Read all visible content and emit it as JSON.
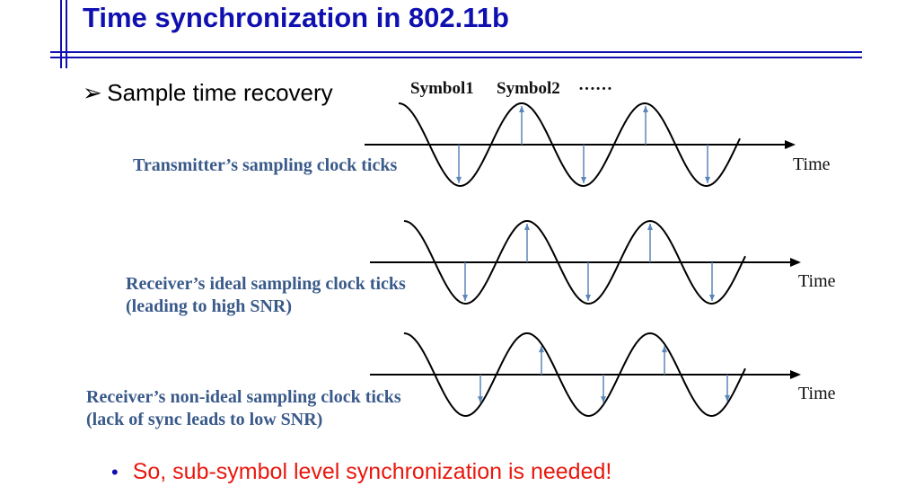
{
  "title": "Time synchronization in 802.11b",
  "bullet": "Sample time recovery",
  "symbols": {
    "symbol1": "Symbol1",
    "symbol2": "Symbol2",
    "ellipsis": "……"
  },
  "rows": [
    {
      "label_line1": "Transmitter’s sampling clock ticks",
      "label_line2": "",
      "axis_label": "Time"
    },
    {
      "label_line1": "Receiver’s ideal sampling clock ticks",
      "label_line2": "(leading to high SNR)",
      "axis_label": "Time"
    },
    {
      "label_line1": "Receiver’s non-ideal sampling clock ticks",
      "label_line2": "(lack of sync leads to low SNR)",
      "axis_label": "Time"
    }
  ],
  "conclusion": "So, sub-symbol level synchronization is needed!",
  "colors": {
    "title": "#1010b0",
    "label": "#3a5a8a",
    "conclusion": "#e8180e",
    "tick": "#5b86b8"
  }
}
